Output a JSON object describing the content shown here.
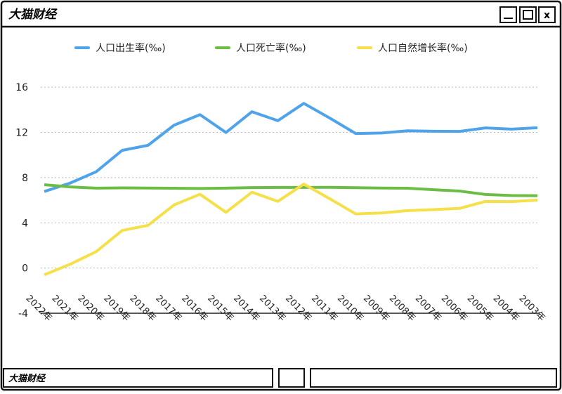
{
  "window": {
    "title": "大猫财经",
    "footer": "大猫财经",
    "close_label": "x"
  },
  "chart_data": {
    "type": "line",
    "categories": [
      "2022年",
      "2021年",
      "2020年",
      "2019年",
      "2018年",
      "2017年",
      "2016年",
      "2015年",
      "2014年",
      "2013年",
      "2012年",
      "2011年",
      "2010年",
      "2009年",
      "2008年",
      "2007年",
      "2006年",
      "2005年",
      "2004年",
      "2003年"
    ],
    "series": [
      {
        "name": "人口出生率(‰)",
        "color": "#4ea3ea",
        "values": [
          6.77,
          7.52,
          8.52,
          10.41,
          10.86,
          12.64,
          13.57,
          11.99,
          13.83,
          13.04,
          14.57,
          13.27,
          11.9,
          11.95,
          12.14,
          12.1,
          12.09,
          12.4,
          12.29,
          12.41
        ]
      },
      {
        "name": "人口死亡率(‰)",
        "color": "#6cbd45",
        "values": [
          7.37,
          7.18,
          7.07,
          7.09,
          7.08,
          7.06,
          7.04,
          7.07,
          7.12,
          7.13,
          7.13,
          7.14,
          7.11,
          7.08,
          7.06,
          6.93,
          6.81,
          6.51,
          6.42,
          6.4
        ]
      },
      {
        "name": "人口自然增长率(‰)",
        "color": "#f5e04a",
        "values": [
          -0.6,
          0.34,
          1.45,
          3.32,
          3.78,
          5.58,
          6.53,
          4.93,
          6.71,
          5.9,
          7.43,
          6.13,
          4.79,
          4.87,
          5.08,
          5.17,
          5.28,
          5.89,
          5.87,
          6.01
        ]
      }
    ],
    "ylim": [
      -4,
      18
    ],
    "yticks": [
      -4,
      0,
      4,
      8,
      12,
      16
    ],
    "grid": true,
    "legend": "top"
  }
}
